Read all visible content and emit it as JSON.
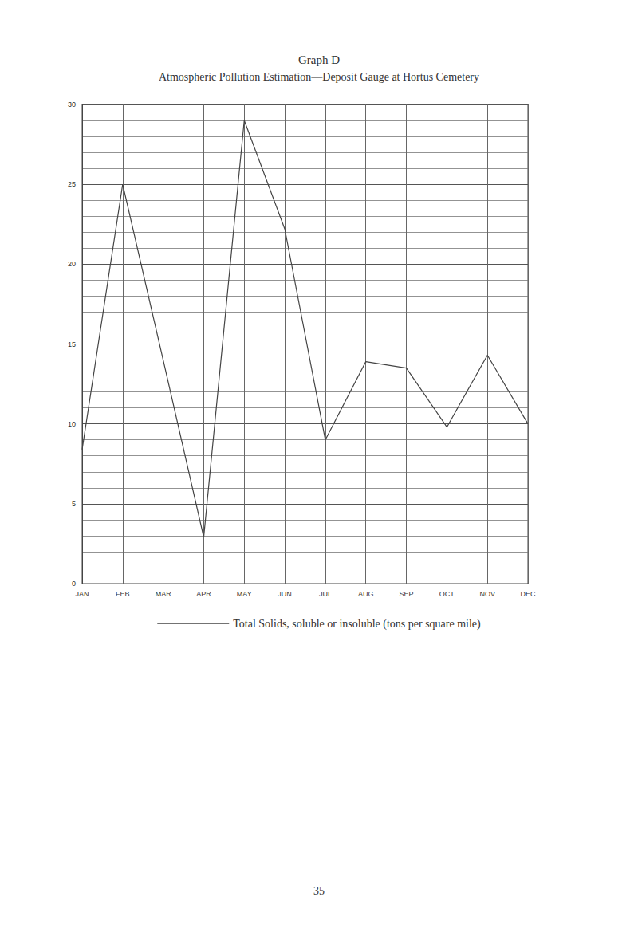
{
  "chart_data": {
    "type": "line",
    "title": "Graph D",
    "subtitle": "Atmospheric Pollution Estimation—Deposit Gauge at Hortus Cemetery",
    "categories": [
      "JAN",
      "FEB",
      "MAR",
      "APR",
      "MAY",
      "JUN",
      "JUL",
      "AUG",
      "SEP",
      "OCT",
      "NOV",
      "DEC"
    ],
    "series": [
      {
        "name": "Total Solids, soluble or insoluble (tons per square mile)",
        "color": "#444444",
        "values": [
          8.4,
          25,
          14,
          2.9,
          29,
          22.2,
          9,
          13.9,
          13.5,
          9.8,
          14.3,
          10
        ]
      }
    ],
    "ylim": [
      0,
      30
    ],
    "yticks": [
      0,
      5,
      10,
      15,
      20,
      25,
      30
    ],
    "grid": true,
    "legend": "bottom",
    "page_number": "35"
  }
}
